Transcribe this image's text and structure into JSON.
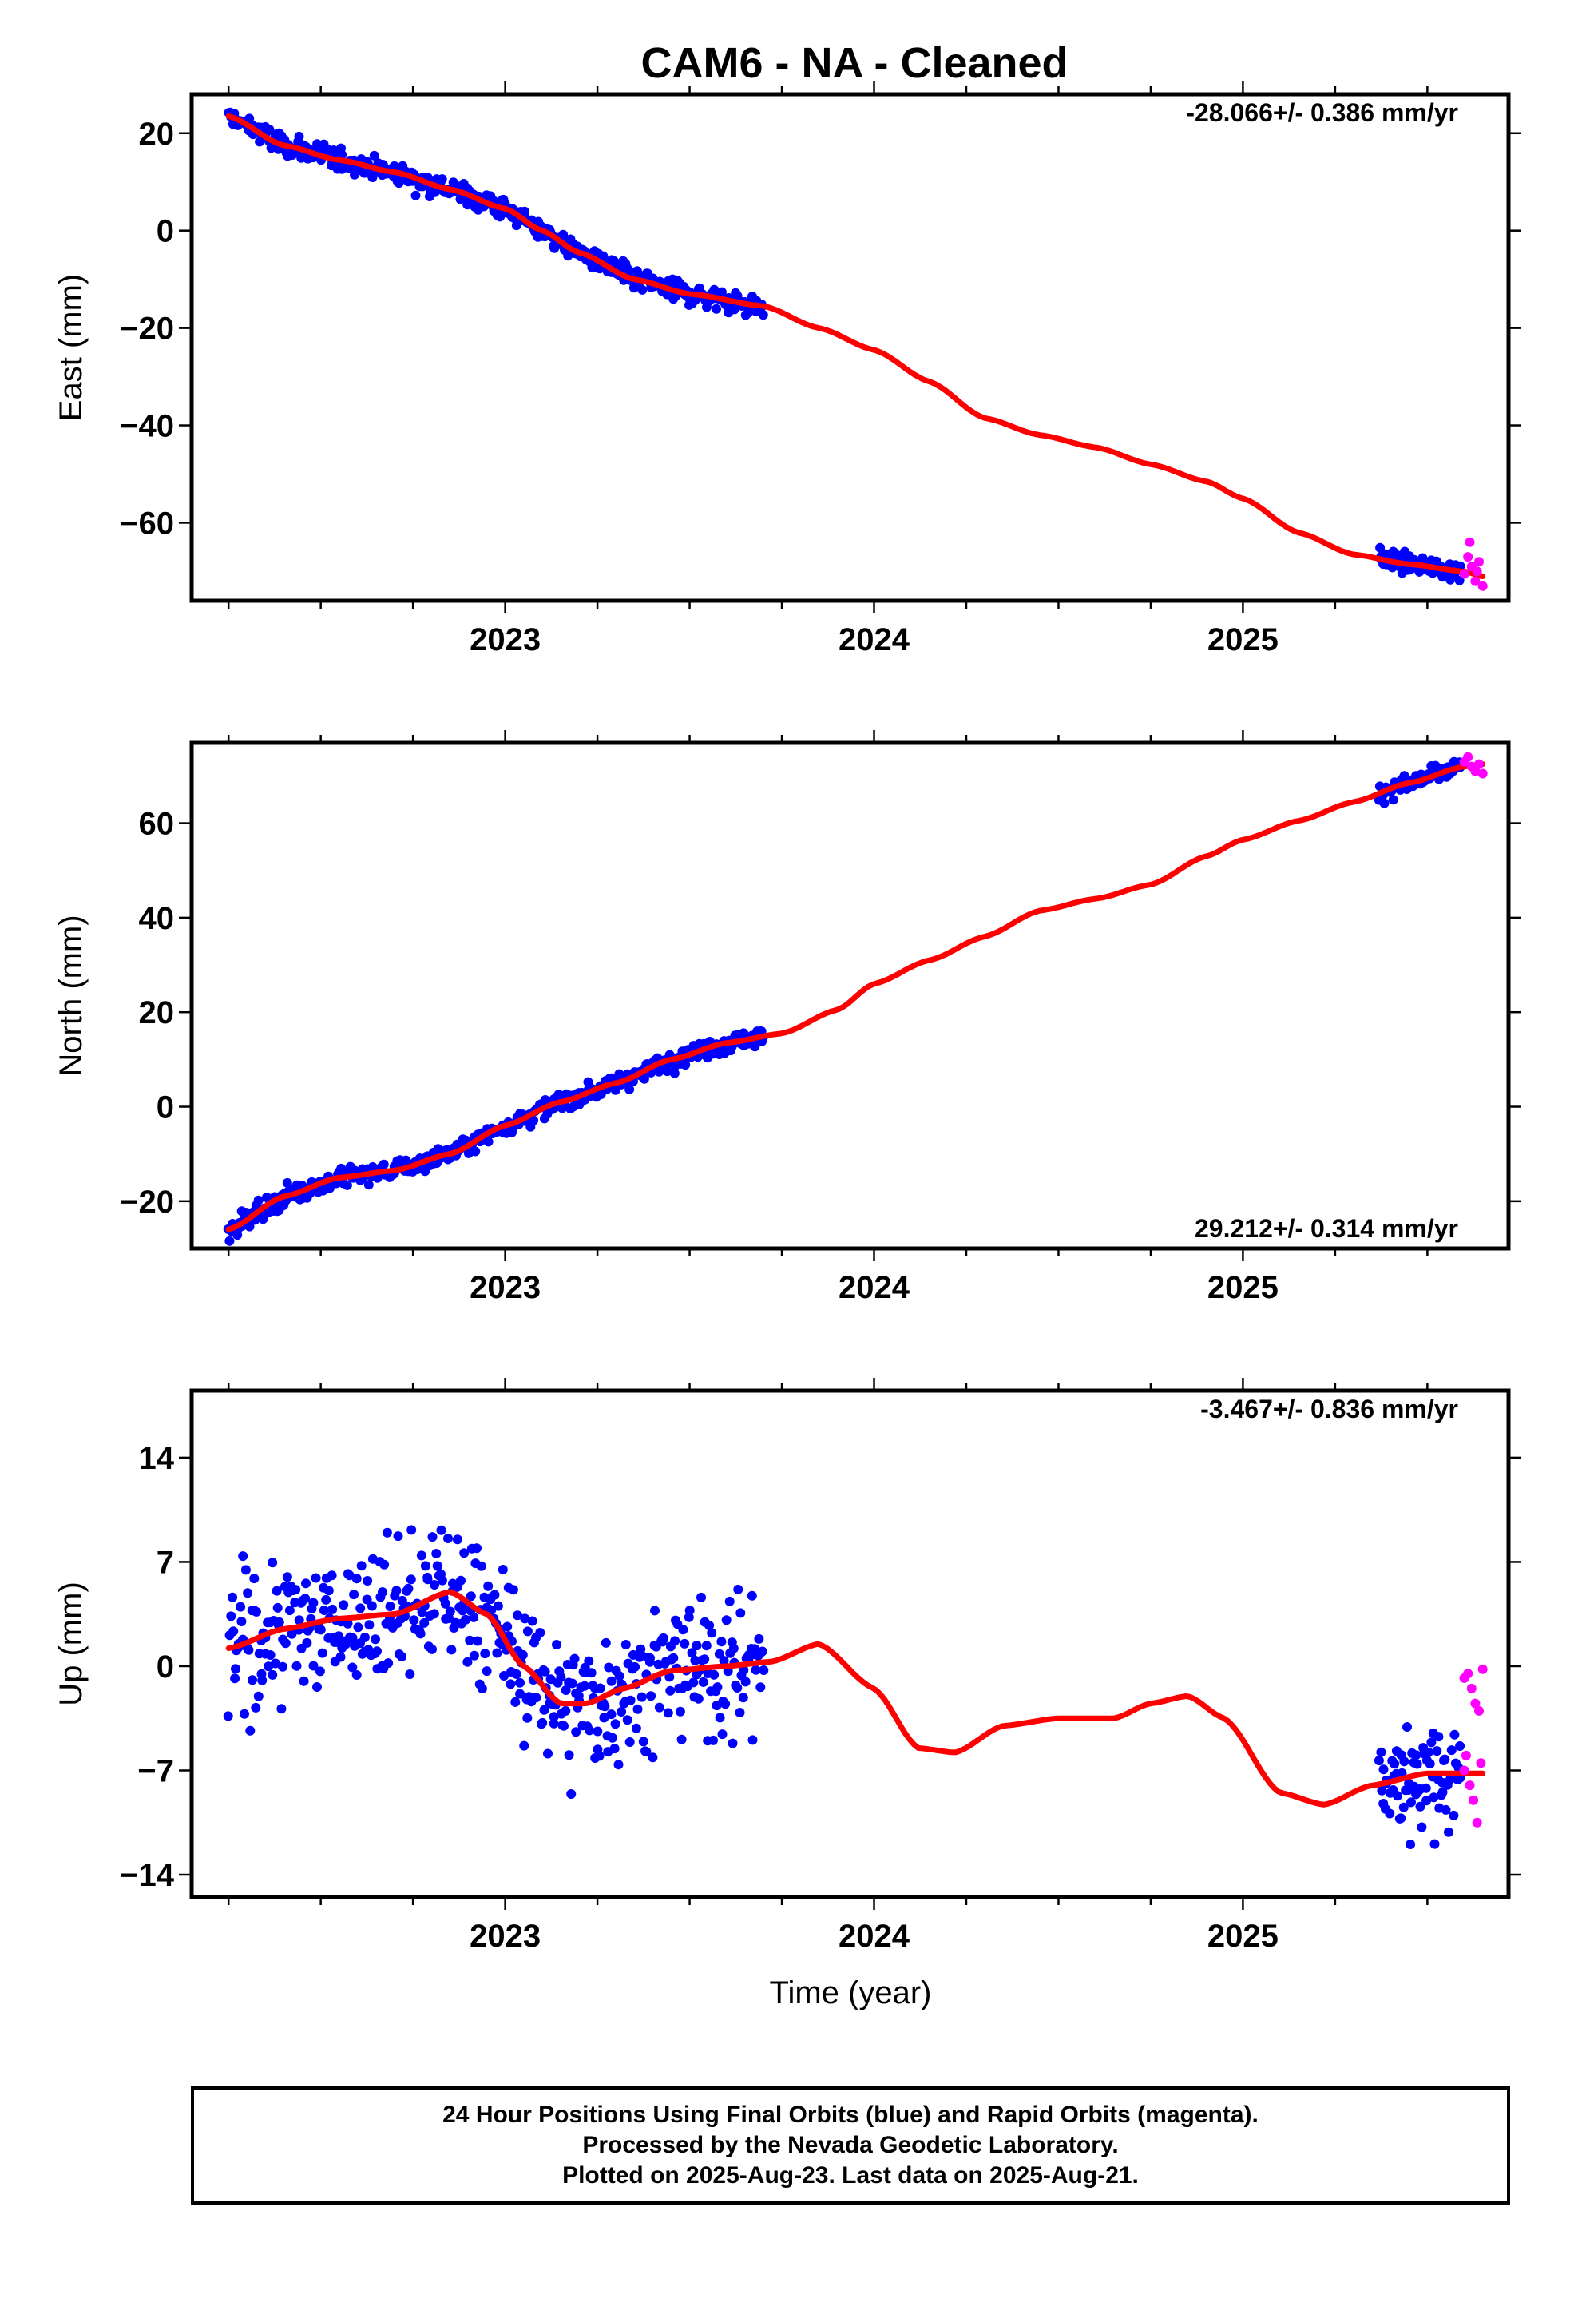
{
  "title": "CAM6  - NA - Cleaned",
  "colors": {
    "final": "#0000ff",
    "rapid": "#ff00ff",
    "model": "#ff0000",
    "frame": "#000000"
  },
  "footer": {
    "line1": "24 Hour Positions Using Final Orbits (blue) and Rapid Orbits (magenta).",
    "line2": "Processed by the Nevada Geodetic Laboratory.",
    "line3": "Plotted on 2025-Aug-23. Last data on 2025-Aug-21."
  },
  "chart_data": [
    {
      "type": "scatter",
      "panel": "east",
      "ylabel": "East (mm)",
      "xlabel": "",
      "xlim": [
        2022.15,
        2025.72
      ],
      "ylim": [
        -76,
        28
      ],
      "yticks": [
        20,
        0,
        -20,
        -40,
        -60
      ],
      "ytick_labels": [
        "20",
        "0",
        "−20",
        "−40",
        "−60"
      ],
      "xticks": [
        2023,
        2024,
        2025
      ],
      "rate_label": "-28.066+/- 0.386 mm/yr",
      "rate_position": "top-right",
      "model_curve": {
        "x": [
          2022.25,
          2022.4,
          2022.55,
          2022.7,
          2022.85,
          2023.0,
          2023.1,
          2023.2,
          2023.35,
          2023.5,
          2023.7,
          2023.85,
          2024.0,
          2024.15,
          2024.3,
          2024.45,
          2024.6,
          2024.75,
          2024.9,
          2025.0,
          2025.15,
          2025.3,
          2025.45,
          2025.6,
          2025.65
        ],
        "y": [
          23.5,
          17.5,
          14.5,
          12,
          8.5,
          4.5,
          0,
          -4.5,
          -10,
          -13,
          -15.5,
          -20,
          -24.5,
          -31,
          -38.5,
          -42,
          -44.5,
          -48,
          -51.5,
          -55,
          -62,
          -66.5,
          -68.5,
          -70,
          -71
        ]
      },
      "final_data": {
        "segments": [
          {
            "x_start": 2022.25,
            "x_end": 2023.7,
            "y_trend": "model",
            "scatter": 1.6,
            "count": 470
          },
          {
            "x_start": 2025.37,
            "x_end": 2025.59,
            "y_trend": "model",
            "scatter": 1.5,
            "count": 75
          }
        ]
      },
      "rapid_data": {
        "x": [
          2025.6,
          2025.61,
          2025.62,
          2025.63,
          2025.64,
          2025.65,
          2025.615,
          2025.635
        ],
        "y": [
          -70.5,
          -67,
          -69,
          -72,
          -68,
          -73,
          -64,
          -70
        ]
      }
    },
    {
      "type": "scatter",
      "panel": "north",
      "ylabel": "North (mm)",
      "xlabel": "",
      "xlim": [
        2022.15,
        2025.72
      ],
      "ylim": [
        -30,
        77
      ],
      "yticks": [
        60,
        40,
        20,
        0,
        -20
      ],
      "ytick_labels": [
        "60",
        "40",
        "20",
        "0",
        "−20"
      ],
      "xticks": [
        2023,
        2024,
        2025
      ],
      "rate_label": "29.212+/- 0.314 mm/yr",
      "rate_position": "bottom-right",
      "model_curve": {
        "x": [
          2022.25,
          2022.4,
          2022.55,
          2022.7,
          2022.85,
          2023.0,
          2023.15,
          2023.3,
          2023.45,
          2023.6,
          2023.75,
          2023.9,
          2024.0,
          2024.15,
          2024.3,
          2024.45,
          2024.6,
          2024.75,
          2024.9,
          2025.0,
          2025.15,
          2025.3,
          2025.45,
          2025.6,
          2025.65
        ],
        "y": [
          -26,
          -19,
          -15,
          -13.5,
          -10,
          -4,
          1,
          5,
          10,
          13.5,
          15.5,
          20.5,
          26,
          31,
          36,
          41.5,
          44,
          47,
          53,
          56.5,
          60.5,
          64.5,
          68.5,
          72,
          72.5
        ]
      },
      "final_data": {
        "segments": [
          {
            "x_start": 2022.25,
            "x_end": 2023.7,
            "y_trend": "model",
            "scatter": 1.4,
            "count": 470
          },
          {
            "x_start": 2025.37,
            "x_end": 2025.59,
            "y_trend": "model",
            "scatter": 1.3,
            "count": 75
          }
        ]
      },
      "rapid_data": {
        "x": [
          2025.6,
          2025.61,
          2025.62,
          2025.63,
          2025.64,
          2025.65
        ],
        "y": [
          73,
          74,
          72,
          71,
          72.5,
          70.5
        ]
      }
    },
    {
      "type": "scatter",
      "panel": "up",
      "ylabel": "Up (mm)",
      "xlabel": "Time (year)",
      "xlim": [
        2022.15,
        2025.72
      ],
      "ylim": [
        -15.5,
        18.5
      ],
      "yticks": [
        14,
        7,
        0,
        -7,
        -14
      ],
      "ytick_labels": [
        "14",
        "7",
        "0",
        "−7",
        "−14"
      ],
      "xticks": [
        2023,
        2024,
        2025
      ],
      "rate_label": "-3.467+/- 0.836 mm/yr",
      "rate_position": "top-right",
      "model_curve": {
        "x": [
          2022.25,
          2022.4,
          2022.55,
          2022.7,
          2022.85,
          2022.95,
          2023.05,
          2023.15,
          2023.22,
          2023.32,
          2023.45,
          2023.6,
          2023.72,
          2023.85,
          2024.0,
          2024.12,
          2024.22,
          2024.35,
          2024.5,
          2024.65,
          2024.75,
          2024.85,
          2024.95,
          2025.1,
          2025.22,
          2025.35,
          2025.5,
          2025.65
        ],
        "y": [
          1.2,
          2.5,
          3.2,
          3.5,
          5,
          3.5,
          0,
          -2.5,
          -2.5,
          -1.5,
          -0.3,
          0,
          0.3,
          1.5,
          -1.5,
          -5.5,
          -5.8,
          -4,
          -3.5,
          -3.5,
          -2.5,
          -2,
          -3.5,
          -8.5,
          -9.3,
          -8,
          -7.2,
          -7.2
        ]
      },
      "final_data": {
        "segments": [
          {
            "x_start": 2022.25,
            "x_end": 2023.7,
            "y_trend": "model",
            "scatter": 3.3,
            "count": 470
          },
          {
            "x_start": 2025.37,
            "x_end": 2025.59,
            "y_trend": "model",
            "scatter": 2.6,
            "count": 75
          }
        ]
      },
      "rapid_data": {
        "x": [
          2025.6,
          2025.61,
          2025.62,
          2025.63,
          2025.64,
          2025.65,
          2025.605,
          2025.615,
          2025.625,
          2025.635,
          2025.645,
          2025.6
        ],
        "y": [
          -0.8,
          -0.5,
          -1.5,
          -2.5,
          -3,
          -0.2,
          -6,
          -8,
          -9,
          -10.5,
          -6.5,
          -7
        ]
      }
    }
  ]
}
